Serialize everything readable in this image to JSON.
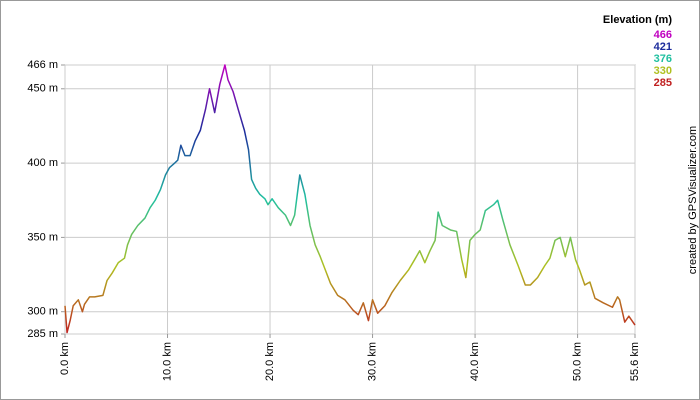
{
  "chart_data": {
    "type": "line",
    "x": [
      0,
      0.2,
      0.5,
      0.8,
      1.3,
      1.7,
      1.9,
      2.4,
      2.9,
      3.7,
      4.1,
      4.6,
      5.2,
      5.8,
      6.1,
      6.5,
      7.1,
      7.8,
      8.3,
      8.8,
      9.3,
      9.8,
      10.2,
      10.7,
      11.0,
      11.3,
      11.7,
      12.2,
      12.7,
      13.2,
      13.7,
      14.1,
      14.6,
      15.1,
      15.6,
      15.9,
      16.4,
      16.9,
      17.5,
      17.9,
      18.2,
      18.6,
      19.0,
      19.5,
      19.8,
      20.2,
      20.8,
      21.5,
      22.0,
      22.4,
      22.9,
      23.4,
      23.9,
      24.4,
      24.9,
      25.4,
      25.9,
      26.6,
      27.3,
      28.1,
      28.6,
      29.1,
      29.6,
      30.0,
      30.5,
      31.2,
      31.9,
      32.7,
      33.5,
      34.1,
      34.6,
      35.1,
      35.6,
      36.1,
      36.4,
      36.8,
      37.6,
      38.2,
      38.7,
      39.1,
      39.5,
      40.0,
      40.5,
      41.0,
      41.8,
      42.2,
      42.7,
      43.4,
      44.2,
      44.9,
      45.4,
      46.1,
      46.8,
      47.3,
      47.8,
      48.3,
      48.8,
      49.3,
      49.8,
      50.2,
      50.7,
      51.2,
      51.7,
      52.5,
      53.4,
      53.9,
      54.1,
      54.6,
      55.0,
      55.6
    ],
    "values": [
      304,
      286,
      294,
      304,
      308,
      300,
      305,
      310,
      310,
      311,
      321,
      326,
      333,
      336,
      345,
      352,
      358,
      363,
      370,
      375,
      382,
      392,
      397,
      400,
      402,
      412,
      405,
      405,
      415,
      422,
      436,
      450,
      434,
      453,
      466,
      456,
      448,
      436,
      422,
      409,
      389,
      383,
      379,
      376,
      372,
      376,
      370,
      365,
      358,
      365,
      392,
      379,
      358,
      345,
      337,
      328,
      319,
      311,
      308,
      301,
      298,
      306,
      294,
      308,
      299,
      304,
      313,
      321,
      328,
      335,
      341,
      333,
      341,
      348,
      367,
      358,
      355,
      354,
      335,
      323,
      348,
      352,
      355,
      368,
      372,
      375,
      362,
      345,
      331,
      318,
      318,
      323,
      331,
      336,
      348,
      350,
      337,
      350,
      335,
      328,
      318,
      320,
      309,
      306,
      303,
      310,
      308,
      293,
      297,
      291
    ],
    "xlim": [
      0,
      55.6
    ],
    "ylim": [
      285,
      466
    ],
    "xticks": [
      {
        "value": 0,
        "label": "0.0 km"
      },
      {
        "value": 10,
        "label": "10.0 km"
      },
      {
        "value": 20,
        "label": "20.0 km"
      },
      {
        "value": 30,
        "label": "30.0 km"
      },
      {
        "value": 40,
        "label": "40.0 km"
      },
      {
        "value": 50,
        "label": "50.0 km"
      },
      {
        "value": 55.6,
        "label": "55.6 km"
      }
    ],
    "yticks": [
      {
        "value": 285,
        "label": "285 m"
      },
      {
        "value": 300,
        "label": "300 m"
      },
      {
        "value": 350,
        "label": "350 m"
      },
      {
        "value": 400,
        "label": "400 m"
      },
      {
        "value": 450,
        "label": "450 m"
      },
      {
        "value": 466,
        "label": "466 m"
      }
    ],
    "grid": true,
    "color_scale_title": "Elevation (m)",
    "color_scale": [
      {
        "value": 466,
        "color": "#c000c0"
      },
      {
        "value": 421,
        "color": "#1c2c9c"
      },
      {
        "value": 376,
        "color": "#20c0a0"
      },
      {
        "value": 330,
        "color": "#b0c020"
      },
      {
        "value": 285,
        "color": "#c02020"
      }
    ],
    "credit": "created by GPSVisualizer.com"
  }
}
